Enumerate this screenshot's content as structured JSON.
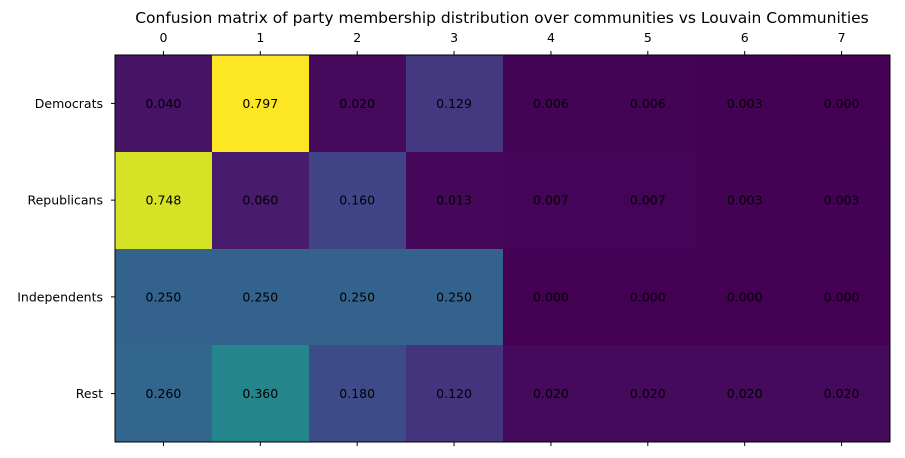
{
  "chart_data": {
    "type": "heatmap",
    "title": "Confusion matrix of party membership distribution over communities vs Louvain Communities",
    "xlabel": "",
    "ylabel": "",
    "x_categories": [
      "0",
      "1",
      "2",
      "3",
      "4",
      "5",
      "6",
      "7"
    ],
    "y_categories": [
      "Democrats",
      "Republicans",
      "Independents",
      "Rest"
    ],
    "colormap": "viridis",
    "values": [
      [
        0.04,
        0.797,
        0.02,
        0.129,
        0.006,
        0.006,
        0.003,
        0.0
      ],
      [
        0.748,
        0.06,
        0.16,
        0.013,
        0.007,
        0.007,
        0.003,
        0.003
      ],
      [
        0.25,
        0.25,
        0.25,
        0.25,
        0.0,
        0.0,
        0.0,
        0.0
      ],
      [
        0.26,
        0.36,
        0.18,
        0.12,
        0.02,
        0.02,
        0.02,
        0.02
      ]
    ],
    "value_labels": [
      [
        "0.040",
        "0.797",
        "0.020",
        "0.129",
        "0.006",
        "0.006",
        "0.003",
        "0.000"
      ],
      [
        "0.748",
        "0.060",
        "0.160",
        "0.013",
        "0.007",
        "0.007",
        "0.003",
        "0.003"
      ],
      [
        "0.250",
        "0.250",
        "0.250",
        "0.250",
        "0.000",
        "0.000",
        "0.000",
        "0.000"
      ],
      [
        "0.260",
        "0.360",
        "0.180",
        "0.120",
        "0.020",
        "0.020",
        "0.020",
        "0.020"
      ]
    ],
    "x_axis_position": "top",
    "grid": false
  }
}
